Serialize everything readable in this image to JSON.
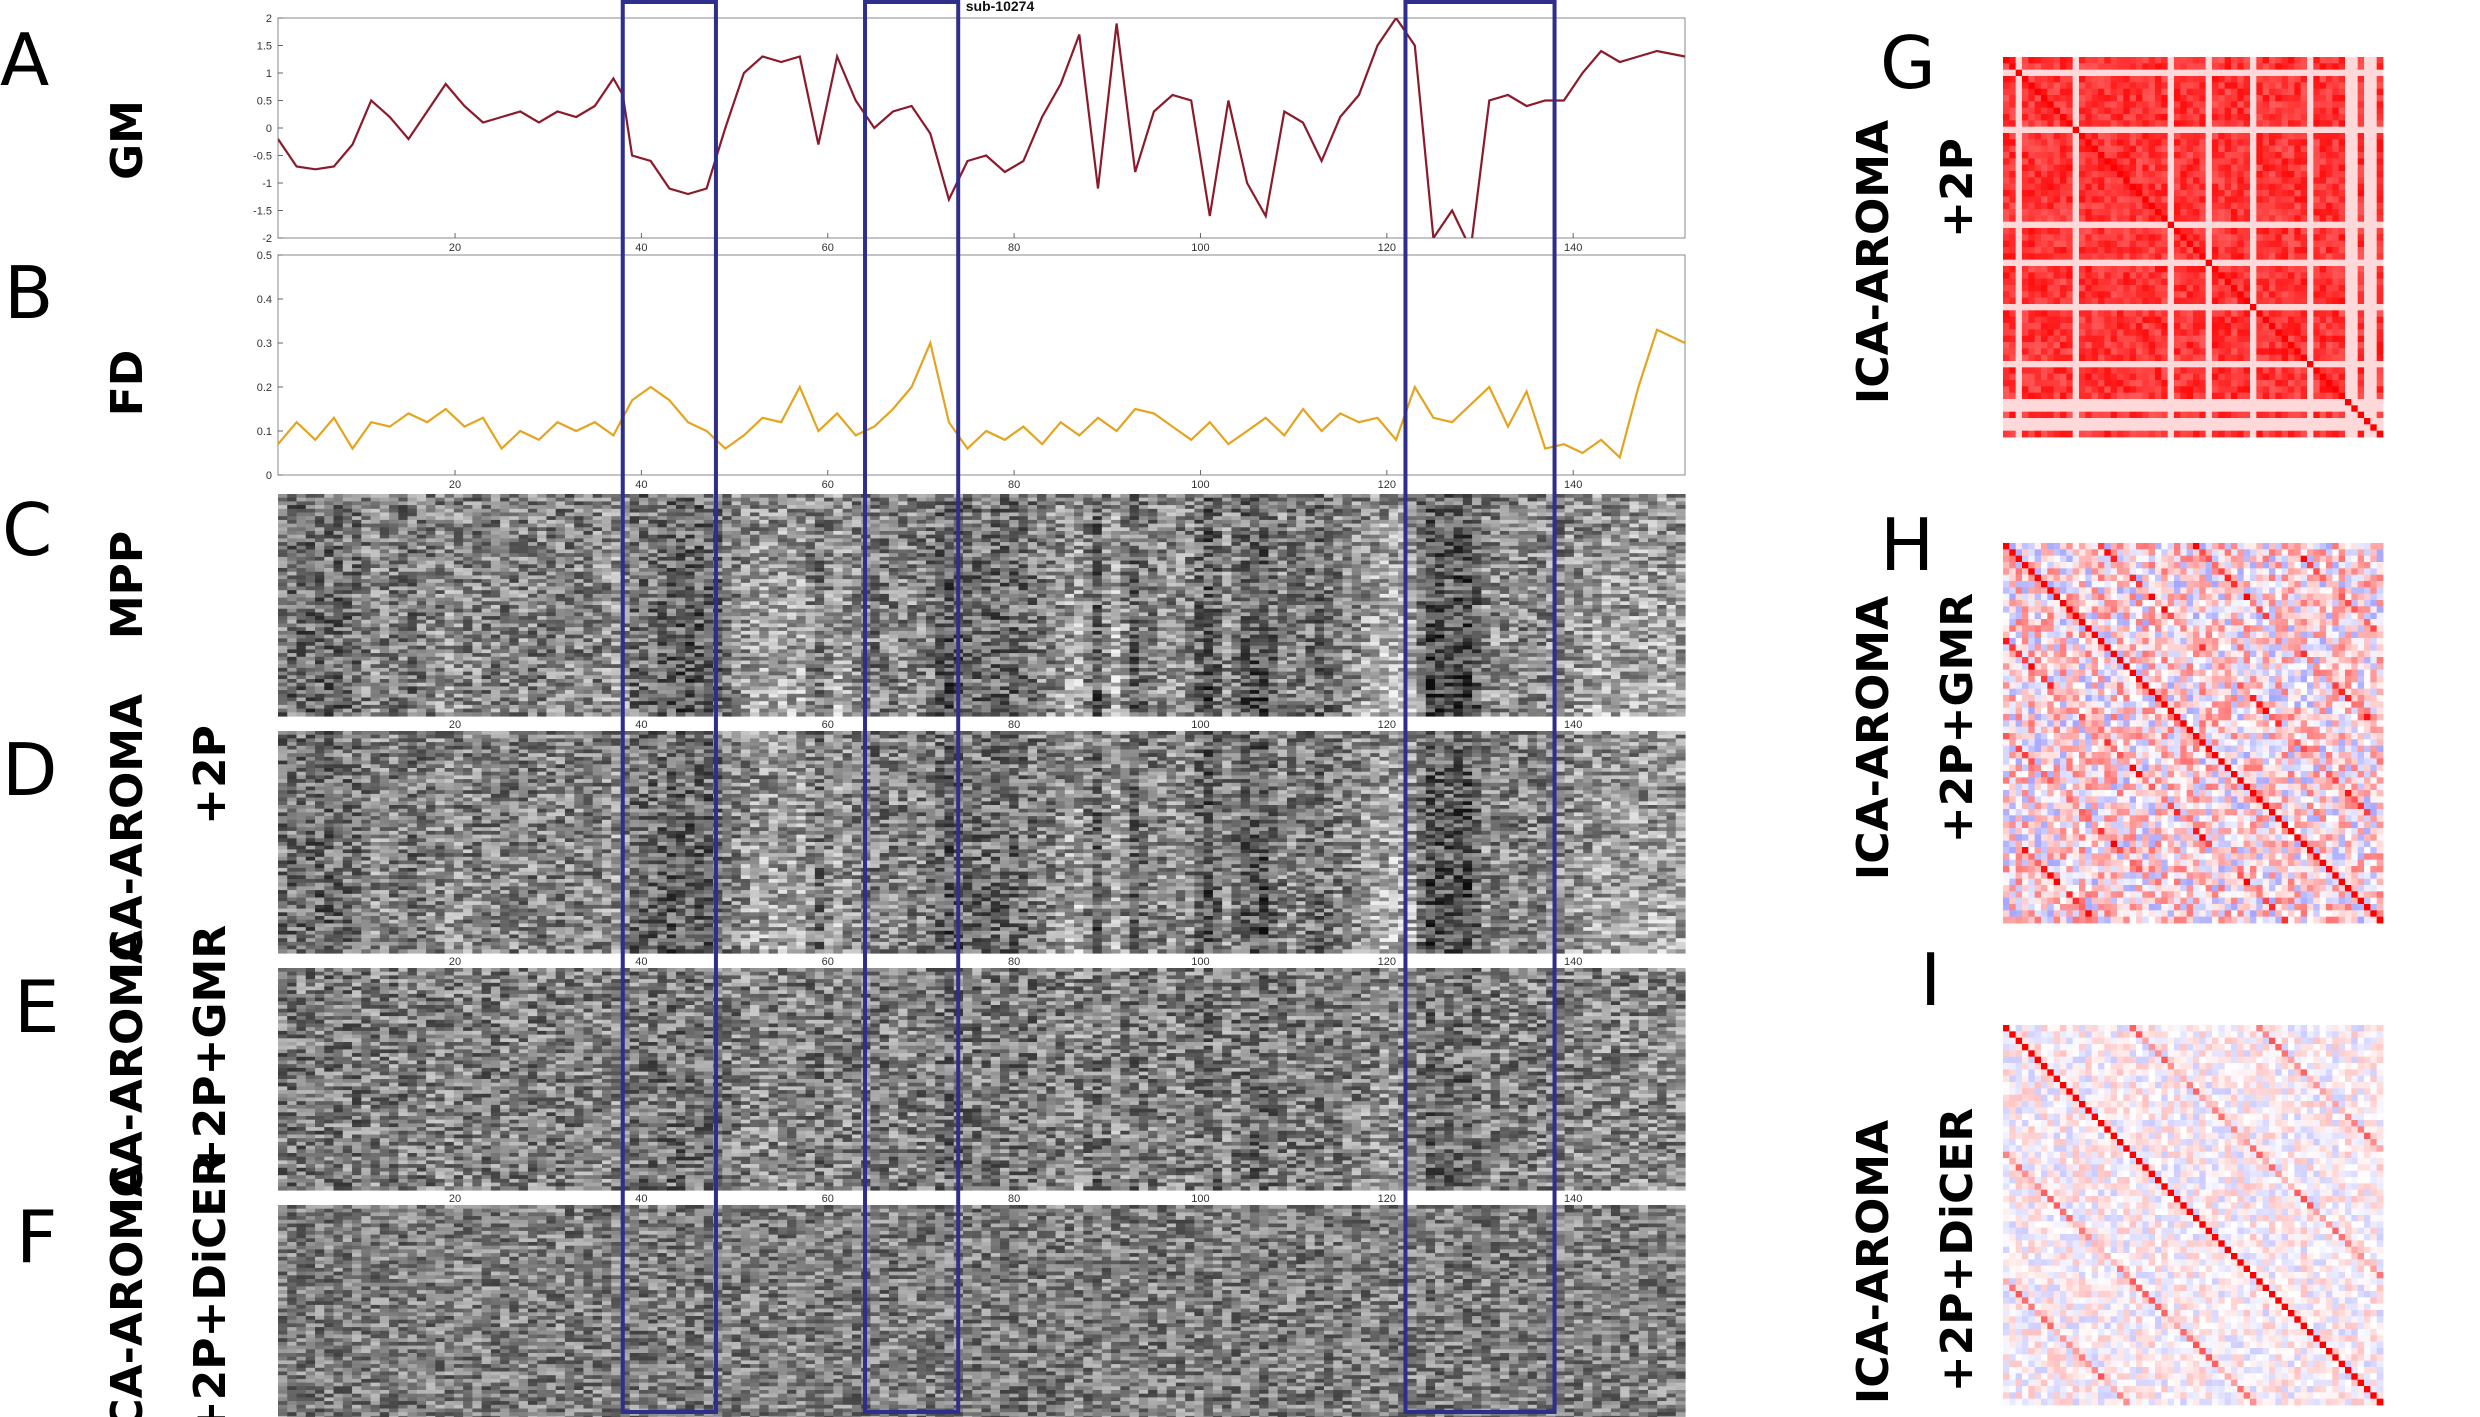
{
  "figure": {
    "panel_letters": [
      "A",
      "B",
      "C",
      "D",
      "E",
      "F",
      "G",
      "H",
      "I"
    ],
    "subject_title": "sub-10274",
    "highlight_color": "#2e2e8c"
  },
  "chart_data": [
    {
      "panel": "A",
      "type": "line",
      "ylabel": "GM",
      "color": "#8b1a2b",
      "xlim": [
        1,
        152
      ],
      "ylim": [
        -2,
        2
      ],
      "xticks": [
        20,
        40,
        60,
        80,
        100,
        120,
        140
      ],
      "yticks": [
        -2,
        -1.5,
        -1,
        -0.5,
        0,
        0.5,
        1,
        1.5,
        2
      ],
      "x": [
        1,
        3,
        5,
        7,
        9,
        11,
        13,
        15,
        17,
        19,
        21,
        23,
        25,
        27,
        29,
        31,
        33,
        35,
        37,
        38,
        39,
        41,
        43,
        45,
        47,
        49,
        51,
        53,
        55,
        57,
        59,
        61,
        63,
        65,
        67,
        69,
        71,
        73,
        75,
        77,
        79,
        81,
        83,
        85,
        87,
        89,
        91,
        93,
        95,
        97,
        99,
        101,
        103,
        105,
        107,
        109,
        111,
        113,
        115,
        117,
        119,
        121,
        123,
        125,
        127,
        129,
        131,
        133,
        135,
        137,
        139,
        141,
        143,
        145,
        147,
        149,
        152
      ],
      "values": [
        -0.2,
        -0.7,
        -0.75,
        -0.7,
        -0.3,
        0.5,
        0.2,
        -0.2,
        0.3,
        0.8,
        0.4,
        0.1,
        0.2,
        0.3,
        0.1,
        0.3,
        0.2,
        0.4,
        0.9,
        0.6,
        -0.5,
        -0.6,
        -1.1,
        -1.2,
        -1.1,
        0,
        1,
        1.3,
        1.2,
        1.3,
        -0.3,
        1.3,
        0.5,
        0,
        0.3,
        0.4,
        -0.1,
        -1.3,
        -0.6,
        -0.5,
        -0.8,
        -0.6,
        0.2,
        0.8,
        1.7,
        -1.1,
        1.9,
        -0.8,
        0.3,
        0.6,
        0.5,
        -1.6,
        0.5,
        -1,
        -1.6,
        0.3,
        0.1,
        -0.6,
        0.2,
        0.6,
        1.5,
        2,
        1.5,
        -2,
        -1.5,
        -2.2,
        0.5,
        0.6,
        0.4,
        0.5,
        0.5,
        1,
        1.4,
        1.2,
        1.3,
        1.4,
        1.3
      ]
    },
    {
      "panel": "B",
      "type": "line",
      "ylabel": "FD",
      "color": "#e6a31e",
      "xlim": [
        1,
        152
      ],
      "ylim": [
        0,
        0.5
      ],
      "xticks": [
        20,
        40,
        60,
        80,
        100,
        120,
        140
      ],
      "yticks": [
        0,
        0.1,
        0.2,
        0.3,
        0.4,
        0.5
      ],
      "x": [
        1,
        3,
        5,
        7,
        9,
        11,
        13,
        15,
        17,
        19,
        21,
        23,
        25,
        27,
        29,
        31,
        33,
        35,
        37,
        39,
        41,
        43,
        45,
        47,
        49,
        51,
        53,
        55,
        57,
        59,
        61,
        63,
        65,
        67,
        69,
        71,
        73,
        75,
        77,
        79,
        81,
        83,
        85,
        87,
        89,
        91,
        93,
        95,
        97,
        99,
        101,
        103,
        105,
        107,
        109,
        111,
        113,
        115,
        117,
        119,
        121,
        123,
        125,
        127,
        129,
        131,
        133,
        135,
        137,
        139,
        141,
        143,
        145,
        147,
        149,
        152
      ],
      "values": [
        0.07,
        0.12,
        0.08,
        0.13,
        0.06,
        0.12,
        0.11,
        0.14,
        0.12,
        0.15,
        0.11,
        0.13,
        0.06,
        0.1,
        0.08,
        0.12,
        0.1,
        0.12,
        0.09,
        0.17,
        0.2,
        0.17,
        0.12,
        0.1,
        0.06,
        0.09,
        0.13,
        0.12,
        0.2,
        0.1,
        0.14,
        0.09,
        0.11,
        0.15,
        0.2,
        0.3,
        0.12,
        0.06,
        0.1,
        0.08,
        0.11,
        0.07,
        0.12,
        0.09,
        0.13,
        0.1,
        0.15,
        0.14,
        0.11,
        0.08,
        0.12,
        0.07,
        0.1,
        0.13,
        0.09,
        0.15,
        0.1,
        0.14,
        0.12,
        0.13,
        0.08,
        0.2,
        0.13,
        0.12,
        0.16,
        0.2,
        0.11,
        0.19,
        0.06,
        0.07,
        0.05,
        0.08,
        0.04,
        0.2,
        0.33,
        0.3
      ]
    },
    {
      "panel": "C",
      "type": "heatmap",
      "ylabel": "MPP",
      "xlim": [
        1,
        152
      ],
      "xticks": [
        20,
        40,
        60,
        80,
        100,
        120,
        140
      ],
      "colormap": "gray"
    },
    {
      "panel": "D",
      "type": "heatmap",
      "ylabel": "ICA-AROMA +2P",
      "xlim": [
        1,
        152
      ],
      "xticks": [
        20,
        40,
        60,
        80,
        100,
        120,
        140
      ],
      "colormap": "gray"
    },
    {
      "panel": "E",
      "type": "heatmap",
      "ylabel": "ICA-AROMA +2P+GMR",
      "xlim": [
        1,
        152
      ],
      "xticks": [
        20,
        40,
        60,
        80,
        100,
        120,
        140
      ],
      "colormap": "gray"
    },
    {
      "panel": "F",
      "type": "heatmap",
      "ylabel": "ICA-AROMA +2P+DiCER",
      "xlim": [
        1,
        152
      ],
      "xticks": [
        20,
        40,
        60,
        80,
        100,
        120,
        140
      ],
      "colormap": "gray"
    },
    {
      "panel": "G",
      "type": "heatmap",
      "label": "ICA-AROMA +2P",
      "colormap": "blue-white-red",
      "mean_correlation": 0.8
    },
    {
      "panel": "H",
      "type": "heatmap",
      "label": "ICA-AROMA +2P+GMR",
      "colormap": "blue-white-red",
      "mean_correlation": 0.1
    },
    {
      "panel": "I",
      "type": "heatmap",
      "label": "ICA-AROMA +2P+DiCER",
      "colormap": "blue-white-red",
      "mean_correlation": 0.02
    }
  ],
  "highlights": [
    {
      "x_start": 38,
      "x_end": 48
    },
    {
      "x_start": 64,
      "x_end": 74
    },
    {
      "x_start": 122,
      "x_end": 138
    }
  ],
  "labels": {
    "gm": "GM",
    "fd": "FD",
    "mpp": "MPP",
    "aroma": "ICA-AROMA",
    "p2": "+2P",
    "p2gmr": "+2P+GMR",
    "p2dicer": "+2P+DiCER"
  }
}
